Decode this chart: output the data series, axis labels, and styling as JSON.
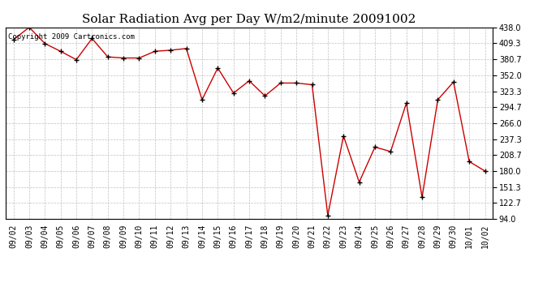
{
  "title": "Solar Radiation Avg per Day W/m2/minute 20091002",
  "copyright": "Copyright 2009 Cartronics.com",
  "dates": [
    "09/02",
    "09/03",
    "09/04",
    "09/05",
    "09/06",
    "09/07",
    "09/08",
    "09/09",
    "09/10",
    "09/11",
    "09/12",
    "09/13",
    "09/14",
    "09/15",
    "09/16",
    "09/17",
    "09/18",
    "09/19",
    "09/20",
    "09/21",
    "09/22",
    "09/23",
    "09/24",
    "09/25",
    "09/26",
    "09/27",
    "09/28",
    "09/29",
    "09/30",
    "10/01",
    "10/02"
  ],
  "values": [
    416,
    438,
    409,
    395,
    380,
    418,
    385,
    383,
    383,
    395,
    397,
    400,
    308,
    365,
    320,
    342,
    315,
    338,
    338,
    335,
    100,
    243,
    160,
    223,
    215,
    302,
    133,
    308,
    340,
    197,
    180
  ],
  "line_color": "#cc0000",
  "marker_color": "#000000",
  "bg_color": "#ffffff",
  "grid_color": "#c0c0c0",
  "ylim_min": 94.0,
  "ylim_max": 438.0,
  "yticks": [
    94.0,
    122.7,
    151.3,
    180.0,
    208.7,
    237.3,
    266.0,
    294.7,
    323.3,
    352.0,
    380.7,
    409.3,
    438.0
  ],
  "title_fontsize": 11,
  "copyright_fontsize": 6.5,
  "tick_fontsize": 7,
  "figwidth": 6.9,
  "figheight": 3.75,
  "dpi": 100
}
